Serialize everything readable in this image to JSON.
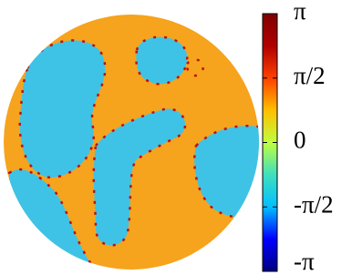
{
  "chart_data": {
    "type": "heatmap",
    "colorbar": {
      "lim": [
        -3.14159,
        3.14159
      ],
      "ticks": [
        {
          "value": 3.14159,
          "label": "π"
        },
        {
          "value": 1.5708,
          "label": "π/2"
        },
        0,
        {
          "value": -1.5708,
          "label": "-π/2"
        },
        {
          "value": -3.14159,
          "label": "-π"
        }
      ],
      "colors": [
        "#00007f",
        "#0000ff",
        "#00bfff",
        "#3fdfbf",
        "#bfff3f",
        "#ffbf00",
        "#ff4000",
        "#b00000",
        "#7f0000"
      ]
    }
  }
}
